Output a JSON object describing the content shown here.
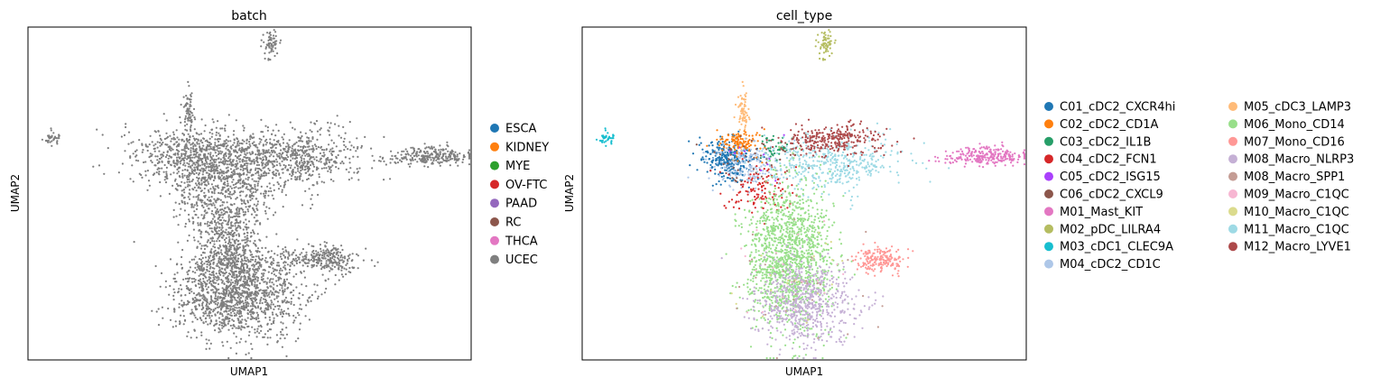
{
  "chart_data": [
    {
      "type": "scatter",
      "title": "batch",
      "xlabel": "UMAP1",
      "ylabel": "UMAP2",
      "xlim": [
        -8,
        13
      ],
      "ylim": [
        -3,
        12
      ],
      "grid": false,
      "legend": "right",
      "legend_entries": [
        {
          "name": "ESCA",
          "color": "#1f77b4"
        },
        {
          "name": "KIDNEY",
          "color": "#ff7f0e"
        },
        {
          "name": "MYE",
          "color": "#2ca02c"
        },
        {
          "name": "OV-FTC",
          "color": "#d62728"
        },
        {
          "name": "PAAD",
          "color": "#9467bd"
        },
        {
          "name": "RC",
          "color": "#8c564b"
        },
        {
          "name": "THCA",
          "color": "#e377c2"
        },
        {
          "name": "UCEC",
          "color": "#7f7f7f"
        }
      ],
      "clusters": [
        {
          "series": "UCEC",
          "center": [
            3.5,
            11.1
          ],
          "spread": [
            0.22,
            0.35
          ],
          "n": 60
        },
        {
          "series": "UCEC",
          "center": [
            -6.9,
            7.0
          ],
          "spread": [
            0.18,
            0.18
          ],
          "n": 40
        },
        {
          "series": "UCEC",
          "center": [
            11.0,
            6.2
          ],
          "spread": [
            1.0,
            0.2
          ],
          "n": 260
        },
        {
          "series": "UCEC",
          "center": [
            -0.4,
            8.2
          ],
          "spread": [
            0.14,
            0.45
          ],
          "n": 70
        },
        {
          "series": "UCEC",
          "center": [
            0.2,
            6.1
          ],
          "spread": [
            1.6,
            0.75
          ],
          "n": 850
        },
        {
          "series": "UCEC",
          "center": [
            4.5,
            6.1
          ],
          "spread": [
            1.6,
            0.65
          ],
          "n": 650
        },
        {
          "series": "UCEC",
          "center": [
            1.3,
            4.4
          ],
          "spread": [
            1.2,
            0.9
          ],
          "n": 450
        },
        {
          "series": "UCEC",
          "center": [
            1.5,
            2.2
          ],
          "spread": [
            0.8,
            0.9
          ],
          "n": 450
        },
        {
          "series": "UCEC",
          "center": [
            1.9,
            0.0
          ],
          "spread": [
            1.5,
            1.0
          ],
          "n": 1400
        },
        {
          "series": "UCEC",
          "center": [
            5.5,
            1.6
          ],
          "spread": [
            1.1,
            0.22
          ],
          "n": 150
        },
        {
          "series": "UCEC",
          "center": [
            6.3,
            1.5
          ],
          "spread": [
            0.5,
            0.35
          ],
          "n": 140
        }
      ]
    },
    {
      "type": "scatter",
      "title": "cell_type",
      "xlabel": "UMAP1",
      "ylabel": "UMAP2",
      "xlim": [
        -8,
        13
      ],
      "ylim": [
        -3,
        12
      ],
      "grid": false,
      "legend": "right",
      "legend_entries": [
        {
          "name": "C01_cDC2_CXCR4hi",
          "color": "#1f77b4"
        },
        {
          "name": "C02_cDC2_CD1A",
          "color": "#ff7f0e"
        },
        {
          "name": "C03_cDC2_IL1B",
          "color": "#279e68"
        },
        {
          "name": "C04_cDC2_FCN1",
          "color": "#d62728"
        },
        {
          "name": "C05_cDC2_ISG15",
          "color": "#aa40fc"
        },
        {
          "name": "C06_cDC2_CXCL9",
          "color": "#8c564b"
        },
        {
          "name": "M01_Mast_KIT",
          "color": "#e377c2"
        },
        {
          "name": "M02_pDC_LILRA4",
          "color": "#b5bd61"
        },
        {
          "name": "M03_cDC1_CLEC9A",
          "color": "#17becf"
        },
        {
          "name": "M04_cDC2_CD1C",
          "color": "#aec7e8"
        },
        {
          "name": "M05_cDC3_LAMP3",
          "color": "#ffbb78"
        },
        {
          "name": "M06_Mono_CD14",
          "color": "#98df8a"
        },
        {
          "name": "M07_Mono_CD16",
          "color": "#ff9896"
        },
        {
          "name": "M08_Macro_NLRP3",
          "color": "#c5b0d5"
        },
        {
          "name": "M08_Macro_SPP1",
          "color": "#c49c94"
        },
        {
          "name": "M09_Macro_C1QC",
          "color": "#f7b6d2"
        },
        {
          "name": "M10_Macro_C1QC",
          "color": "#dbdb8d"
        },
        {
          "name": "M11_Macro_C1QC",
          "color": "#9edae5"
        },
        {
          "name": "M12_Macro_LYVE1",
          "color": "#ad494a"
        }
      ],
      "clusters": [
        {
          "series": "M02_pDC_LILRA4",
          "center": [
            3.5,
            11.1
          ],
          "spread": [
            0.22,
            0.35
          ],
          "n": 60
        },
        {
          "series": "M03_cDC1_CLEC9A",
          "center": [
            -6.9,
            7.0
          ],
          "spread": [
            0.18,
            0.18
          ],
          "n": 40
        },
        {
          "series": "M01_Mast_KIT",
          "center": [
            11.0,
            6.2
          ],
          "spread": [
            1.0,
            0.2
          ],
          "n": 260
        },
        {
          "series": "M05_cDC3_LAMP3",
          "center": [
            -0.4,
            8.2
          ],
          "spread": [
            0.14,
            0.45
          ],
          "n": 70
        },
        {
          "series": "C01_cDC2_CXCR4hi",
          "center": [
            -1.1,
            6.0
          ],
          "spread": [
            0.6,
            0.5
          ],
          "n": 300
        },
        {
          "series": "C02_cDC2_CD1A",
          "center": [
            -0.5,
            6.8
          ],
          "spread": [
            0.5,
            0.3
          ],
          "n": 120
        },
        {
          "series": "M04_cDC2_CD1C",
          "center": [
            -0.4,
            5.8
          ],
          "spread": [
            0.9,
            0.6
          ],
          "n": 180
        },
        {
          "series": "C04_cDC2_FCN1",
          "center": [
            0.4,
            4.7
          ],
          "spread": [
            0.8,
            0.6
          ],
          "n": 120
        },
        {
          "series": "C06_cDC2_CXCL9",
          "center": [
            0.2,
            6.2
          ],
          "spread": [
            1.3,
            0.6
          ],
          "n": 50
        },
        {
          "series": "C03_cDC2_IL1B",
          "center": [
            1.2,
            6.6
          ],
          "spread": [
            0.5,
            0.3
          ],
          "n": 40
        },
        {
          "series": "C05_cDC2_ISG15",
          "center": [
            0.5,
            6.0
          ],
          "spread": [
            1.0,
            0.5
          ],
          "n": 10
        },
        {
          "series": "M11_Macro_C1QC",
          "center": [
            3.8,
            5.9
          ],
          "spread": [
            1.6,
            0.6
          ],
          "n": 450
        },
        {
          "series": "M12_Macro_LYVE1",
          "center": [
            3.8,
            6.9
          ],
          "spread": [
            1.2,
            0.35
          ],
          "n": 300
        },
        {
          "series": "M06_Mono_CD14",
          "center": [
            1.8,
            1.6
          ],
          "spread": [
            1.0,
            1.6
          ],
          "n": 1400
        },
        {
          "series": "M08_Macro_NLRP3",
          "center": [
            2.5,
            -0.5
          ],
          "spread": [
            1.2,
            0.9
          ],
          "n": 650
        },
        {
          "series": "M07_Mono_CD16",
          "center": [
            6.1,
            1.5
          ],
          "spread": [
            0.6,
            0.3
          ],
          "n": 190
        },
        {
          "series": "M08_Macro_SPP1",
          "center": [
            2.0,
            0.5
          ],
          "spread": [
            1.5,
            1.2
          ],
          "n": 30
        },
        {
          "series": "M09_Macro_C1QC",
          "center": [
            2.0,
            1.0
          ],
          "spread": [
            1.5,
            1.2
          ],
          "n": 20
        },
        {
          "series": "M10_Macro_C1QC",
          "center": [
            2.0,
            1.0
          ],
          "spread": [
            1.5,
            1.2
          ],
          "n": 20
        }
      ]
    }
  ]
}
